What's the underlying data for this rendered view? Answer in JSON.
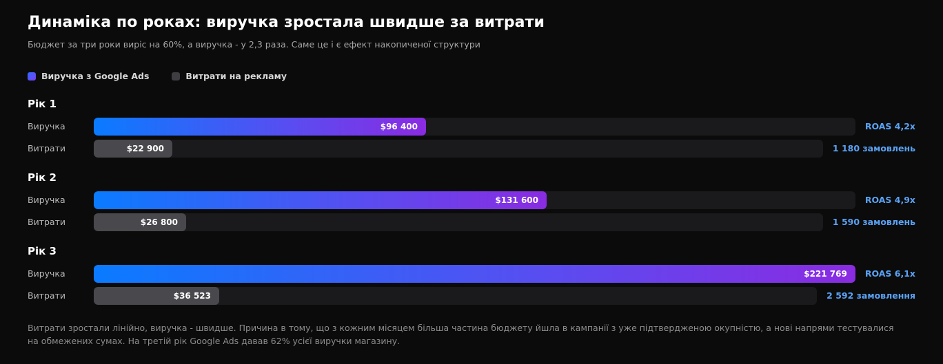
{
  "header": {
    "title": "Динаміка по роках: виручка зростала швидше за витрати",
    "subtitle": "Бюджет за три роки виріс на 60%, а виручка - у 2,3 раза. Саме це і є ефект накопиченої структури"
  },
  "legend": {
    "revenue": "Виручка з Google Ads",
    "cost": "Витрати на рекламу"
  },
  "colors": {
    "revenue_start": "#0a7bff",
    "revenue_end": "#8a2be2",
    "cost": "#48484d",
    "track": "#1a1a1c",
    "accent_text": "#5aa2f5",
    "background": "#0b0b0b"
  },
  "chart_data": {
    "type": "bar",
    "orientation": "horizontal",
    "categories": [
      "Рік 1",
      "Рік 2",
      "Рік 3"
    ],
    "series": [
      {
        "name": "Виручка з Google Ads",
        "row_label": "Виручка",
        "values": [
          96400,
          131600,
          221769
        ],
        "value_labels": [
          "$96 400",
          "$131 600",
          "$221 769"
        ],
        "side_labels": [
          "ROAS 4,2x",
          "ROAS 4,9x",
          "ROAS 6,1x"
        ],
        "scale_max": 221769
      },
      {
        "name": "Витрати на рекламу",
        "row_label": "Витрати",
        "values": [
          22900,
          26800,
          36523
        ],
        "value_labels": [
          "$22 900",
          "$26 800",
          "$36 523"
        ],
        "side_labels": [
          "1 180 замовлень",
          "1 590 замовлень",
          "2 592 замовлення"
        ],
        "scale_max": 221769
      }
    ],
    "legend_position": "top-left",
    "grid": false
  },
  "footer": {
    "note": "Витрати зростали лінійно, виручка - швидше. Причина в тому, що з кожним місяцем більша частина бюджету йшла в кампанії з уже підтвердженою окупністю, а нові напрями тестувалися на обмежених сумах. На третій рік Google Ads давав 62% усієї виручки магазину."
  }
}
